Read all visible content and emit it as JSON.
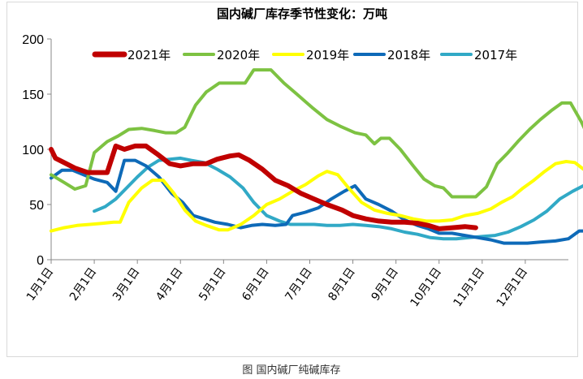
{
  "caption": "图 国内碱厂纯碱库存",
  "chart_data": {
    "type": "line",
    "title": "国内碱厂库存季节性变化：万吨",
    "xlabel": "",
    "ylabel": "",
    "ylim": [
      0,
      200
    ],
    "yticks": [
      0,
      50,
      100,
      150,
      200
    ],
    "x_range_months": [
      1,
      13
    ],
    "x_ticks": [
      "1月1日",
      "2月1日",
      "3月1日",
      "4月1日",
      "5月1日",
      "6月1日",
      "7月1日",
      "8月1日",
      "9月1日",
      "10月1日",
      "11月1日",
      "12月1日"
    ],
    "grid": false,
    "legend": "top",
    "series": [
      {
        "name": "2021年",
        "color": "#c00000",
        "points": [
          [
            1.0,
            100
          ],
          [
            1.1,
            92
          ],
          [
            1.3,
            88
          ],
          [
            1.55,
            83
          ],
          [
            1.85,
            79
          ],
          [
            2.1,
            79
          ],
          [
            2.3,
            79
          ],
          [
            2.5,
            103
          ],
          [
            2.7,
            100
          ],
          [
            2.95,
            103
          ],
          [
            3.2,
            103
          ],
          [
            3.45,
            96
          ],
          [
            3.75,
            87
          ],
          [
            4.0,
            85
          ],
          [
            4.3,
            87
          ],
          [
            4.6,
            87
          ],
          [
            4.85,
            91
          ],
          [
            5.15,
            94
          ],
          [
            5.35,
            95
          ],
          [
            5.6,
            90
          ],
          [
            5.9,
            82
          ],
          [
            6.2,
            72
          ],
          [
            6.5,
            67
          ],
          [
            6.8,
            60
          ],
          [
            7.1,
            55
          ],
          [
            7.4,
            50
          ],
          [
            7.75,
            45
          ],
          [
            8.0,
            40
          ],
          [
            8.3,
            37
          ],
          [
            8.6,
            35
          ],
          [
            8.9,
            34
          ],
          [
            9.2,
            34
          ],
          [
            9.5,
            33
          ],
          [
            9.75,
            31
          ],
          [
            10.0,
            28
          ],
          [
            10.3,
            29
          ],
          [
            10.6,
            30
          ],
          [
            10.85,
            29
          ]
        ]
      },
      {
        "name": "2020年",
        "color": "#7dc242",
        "points": [
          [
            1.0,
            77
          ],
          [
            1.3,
            70
          ],
          [
            1.55,
            64
          ],
          [
            1.8,
            67
          ],
          [
            2.0,
            97
          ],
          [
            2.3,
            107
          ],
          [
            2.55,
            112
          ],
          [
            2.8,
            118
          ],
          [
            3.1,
            119
          ],
          [
            3.4,
            117
          ],
          [
            3.65,
            115
          ],
          [
            3.9,
            115
          ],
          [
            4.1,
            120
          ],
          [
            4.35,
            140
          ],
          [
            4.6,
            152
          ],
          [
            4.9,
            160
          ],
          [
            5.2,
            160
          ],
          [
            5.5,
            160
          ],
          [
            5.7,
            172
          ],
          [
            6.1,
            172
          ],
          [
            6.4,
            160
          ],
          [
            6.7,
            150
          ],
          [
            7.05,
            138
          ],
          [
            7.4,
            127
          ],
          [
            7.7,
            121
          ],
          [
            8.05,
            115
          ],
          [
            8.3,
            113
          ],
          [
            8.5,
            105
          ],
          [
            8.65,
            110
          ],
          [
            8.85,
            110
          ],
          [
            9.1,
            100
          ],
          [
            9.4,
            85
          ],
          [
            9.65,
            73
          ],
          [
            9.9,
            67
          ],
          [
            10.1,
            65
          ],
          [
            10.3,
            57
          ],
          [
            10.55,
            57
          ],
          [
            10.85,
            57
          ],
          [
            11.1,
            66
          ],
          [
            11.35,
            87
          ],
          [
            11.6,
            97
          ],
          [
            11.85,
            108
          ],
          [
            12.1,
            118
          ],
          [
            12.35,
            127
          ],
          [
            12.6,
            135
          ],
          [
            12.85,
            142
          ],
          [
            13.05,
            142
          ],
          [
            13.3,
            125
          ],
          [
            13.6,
            100
          ]
        ]
      },
      {
        "name": "2019年",
        "color": "#ffff00",
        "points": [
          [
            1.0,
            26
          ],
          [
            1.3,
            29
          ],
          [
            1.6,
            31
          ],
          [
            1.9,
            32
          ],
          [
            2.2,
            33
          ],
          [
            2.45,
            34
          ],
          [
            2.6,
            34
          ],
          [
            2.8,
            52
          ],
          [
            3.1,
            65
          ],
          [
            3.35,
            72
          ],
          [
            3.6,
            72
          ],
          [
            3.85,
            60
          ],
          [
            4.1,
            45
          ],
          [
            4.35,
            35
          ],
          [
            4.6,
            31
          ],
          [
            4.9,
            27
          ],
          [
            5.1,
            27
          ],
          [
            5.4,
            32
          ],
          [
            5.7,
            40
          ],
          [
            6.0,
            50
          ],
          [
            6.3,
            55
          ],
          [
            6.6,
            62
          ],
          [
            6.9,
            68
          ],
          [
            7.2,
            76
          ],
          [
            7.4,
            80
          ],
          [
            7.65,
            77
          ],
          [
            7.9,
            65
          ],
          [
            8.2,
            52
          ],
          [
            8.5,
            45
          ],
          [
            8.8,
            42
          ],
          [
            9.1,
            40
          ],
          [
            9.4,
            37
          ],
          [
            9.7,
            35
          ],
          [
            10.0,
            35
          ],
          [
            10.3,
            36
          ],
          [
            10.6,
            40
          ],
          [
            10.9,
            42
          ],
          [
            11.2,
            46
          ],
          [
            11.45,
            52
          ],
          [
            11.7,
            57
          ],
          [
            11.95,
            65
          ],
          [
            12.2,
            72
          ],
          [
            12.45,
            80
          ],
          [
            12.7,
            87
          ],
          [
            12.95,
            89
          ],
          [
            13.15,
            88
          ],
          [
            13.35,
            82
          ],
          [
            13.7,
            79
          ]
        ]
      },
      {
        "name": "2018年",
        "color": "#0e6ab8",
        "points": [
          [
            1.0,
            74
          ],
          [
            1.25,
            81
          ],
          [
            1.5,
            81
          ],
          [
            1.75,
            77
          ],
          [
            2.0,
            73
          ],
          [
            2.3,
            70
          ],
          [
            2.5,
            62
          ],
          [
            2.7,
            90
          ],
          [
            2.95,
            90
          ],
          [
            3.2,
            85
          ],
          [
            3.5,
            75
          ],
          [
            3.8,
            60
          ],
          [
            4.05,
            52
          ],
          [
            4.3,
            40
          ],
          [
            4.55,
            37
          ],
          [
            4.8,
            34
          ],
          [
            5.1,
            32
          ],
          [
            5.4,
            29
          ],
          [
            5.65,
            31
          ],
          [
            5.9,
            32
          ],
          [
            6.2,
            31
          ],
          [
            6.45,
            32
          ],
          [
            6.6,
            40
          ],
          [
            6.9,
            43
          ],
          [
            7.2,
            47
          ],
          [
            7.5,
            55
          ],
          [
            7.8,
            62
          ],
          [
            8.05,
            67
          ],
          [
            8.3,
            55
          ],
          [
            8.6,
            50
          ],
          [
            8.9,
            44
          ],
          [
            9.2,
            36
          ],
          [
            9.5,
            31
          ],
          [
            9.75,
            28
          ],
          [
            10.0,
            24
          ],
          [
            10.3,
            24
          ],
          [
            10.6,
            22
          ],
          [
            10.9,
            20
          ],
          [
            11.2,
            18
          ],
          [
            11.5,
            15
          ],
          [
            11.8,
            15
          ],
          [
            12.05,
            15
          ],
          [
            12.35,
            16
          ],
          [
            12.7,
            17
          ],
          [
            13.0,
            19
          ],
          [
            13.25,
            26
          ],
          [
            13.5,
            26
          ],
          [
            13.7,
            25
          ]
        ]
      },
      {
        "name": "2017年",
        "color": "#31a9c6",
        "points": [
          [
            2.0,
            44
          ],
          [
            2.25,
            48
          ],
          [
            2.5,
            55
          ],
          [
            2.75,
            65
          ],
          [
            3.0,
            75
          ],
          [
            3.25,
            84
          ],
          [
            3.5,
            90
          ],
          [
            3.75,
            91
          ],
          [
            4.0,
            92
          ],
          [
            4.25,
            90
          ],
          [
            4.55,
            88
          ],
          [
            4.85,
            82
          ],
          [
            5.15,
            75
          ],
          [
            5.45,
            65
          ],
          [
            5.7,
            52
          ],
          [
            6.0,
            40
          ],
          [
            6.3,
            35
          ],
          [
            6.55,
            32
          ],
          [
            6.85,
            32
          ],
          [
            7.1,
            32
          ],
          [
            7.4,
            31
          ],
          [
            7.7,
            31
          ],
          [
            8.0,
            32
          ],
          [
            8.3,
            31
          ],
          [
            8.6,
            30
          ],
          [
            8.9,
            28
          ],
          [
            9.2,
            25
          ],
          [
            9.5,
            23
          ],
          [
            9.8,
            20
          ],
          [
            10.1,
            19
          ],
          [
            10.4,
            19
          ],
          [
            10.7,
            20
          ],
          [
            11.0,
            21
          ],
          [
            11.3,
            22
          ],
          [
            11.6,
            25
          ],
          [
            11.9,
            30
          ],
          [
            12.2,
            36
          ],
          [
            12.5,
            44
          ],
          [
            12.8,
            55
          ],
          [
            13.1,
            62
          ],
          [
            13.4,
            68
          ],
          [
            13.7,
            74
          ]
        ]
      }
    ]
  }
}
